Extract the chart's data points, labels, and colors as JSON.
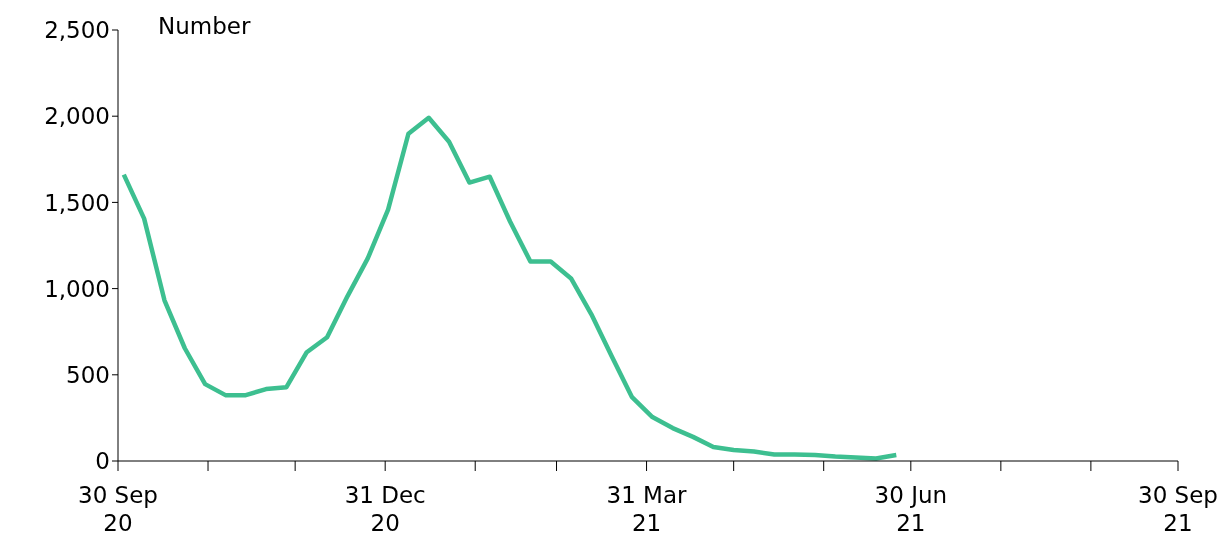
{
  "chart_data": {
    "type": "line",
    "ylabel": "Number",
    "x": [
      "2020-10-02",
      "2020-10-09",
      "2020-10-16",
      "2020-10-23",
      "2020-10-30",
      "2020-11-06",
      "2020-11-13",
      "2020-11-20",
      "2020-11-27",
      "2020-12-04",
      "2020-12-11",
      "2020-12-18",
      "2020-12-25",
      "2021-01-01",
      "2021-01-08",
      "2021-01-15",
      "2021-01-22",
      "2021-01-29",
      "2021-02-05",
      "2021-02-12",
      "2021-02-19",
      "2021-02-26",
      "2021-03-05",
      "2021-03-12",
      "2021-03-19",
      "2021-03-26",
      "2021-04-02",
      "2021-04-09",
      "2021-04-16",
      "2021-04-23",
      "2021-04-30",
      "2021-05-07",
      "2021-05-14",
      "2021-05-21",
      "2021-05-28",
      "2021-06-04",
      "2021-06-11",
      "2021-06-18",
      "2021-06-25"
    ],
    "series": [
      {
        "color": "#3dbf90",
        "values": [
          1661,
          1406,
          932,
          654,
          446,
          382,
          382,
          417,
          428,
          631,
          718,
          955,
          1175,
          1458,
          1898,
          1991,
          1852,
          1615,
          1649,
          1389,
          1157,
          1157,
          1059,
          851,
          608,
          370,
          255,
          191,
          140,
          81,
          64,
          55,
          38,
          38,
          35,
          26,
          20,
          15,
          35
        ]
      }
    ],
    "xlim": [
      "2020-09-30",
      "2021-09-30"
    ],
    "xticks": [
      {
        "value": "2020-09-30",
        "label": "30 Sep 20"
      },
      {
        "value": "2020-10-31",
        "label": null
      },
      {
        "value": "2020-11-30",
        "label": null
      },
      {
        "value": "2020-12-31",
        "label": "31 Dec 20"
      },
      {
        "value": "2021-01-31",
        "label": null
      },
      {
        "value": "2021-02-28",
        "label": null
      },
      {
        "value": "2021-03-31",
        "label": "31 Mar 21"
      },
      {
        "value": "2021-04-30",
        "label": null
      },
      {
        "value": "2021-05-31",
        "label": null
      },
      {
        "value": "2021-06-30",
        "label": "30 Jun 21"
      },
      {
        "value": "2021-07-31",
        "label": null
      },
      {
        "value": "2021-08-31",
        "label": null
      },
      {
        "value": "2021-09-30",
        "label": "30 Sep 21"
      }
    ],
    "ylim": [
      0,
      2500
    ],
    "yticks": [
      {
        "value": 0,
        "label": "0"
      },
      {
        "value": 500,
        "label": "500"
      },
      {
        "value": 1000,
        "label": "1,000"
      },
      {
        "value": 1500,
        "label": "1,500"
      },
      {
        "value": 2000,
        "label": "2,000"
      },
      {
        "value": 2500,
        "label": "2,500"
      }
    ],
    "grid": false,
    "legend": false,
    "marker": "none",
    "line_style": "solid"
  }
}
